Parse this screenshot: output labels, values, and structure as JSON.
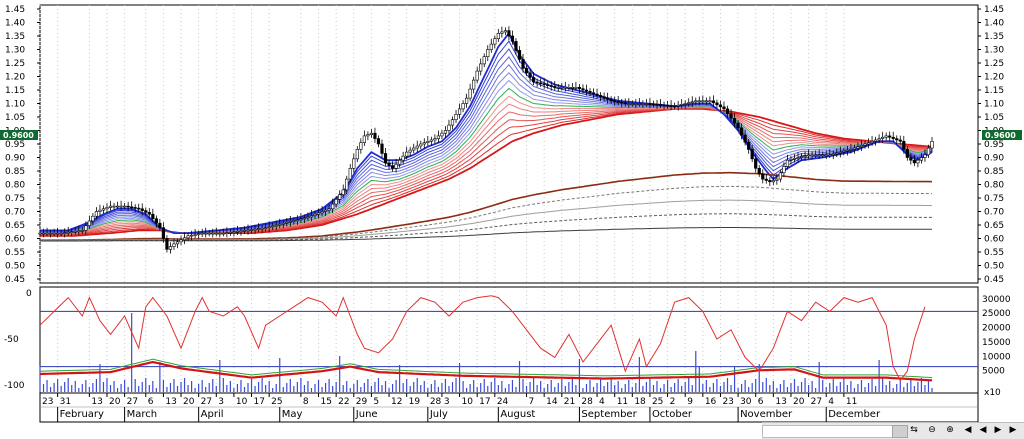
{
  "chart_data": {
    "type": "candlestick-with-moving-average-ribbon",
    "main_panel": {
      "y_axis_ticks": [
        "1.45",
        "1.40",
        "1.35",
        "1.30",
        "1.25",
        "1.20",
        "1.15",
        "1.10",
        "1.05",
        "1.00",
        "0.95",
        "0.90",
        "0.85",
        "0.80",
        "0.75",
        "0.70",
        "0.65",
        "0.60",
        "0.55",
        "0.50",
        "0.45"
      ],
      "ylim": [
        0.45,
        1.45
      ],
      "last_price_label": "0.9600",
      "last_price": 0.96,
      "price_path": [
        [
          0,
          0.62
        ],
        [
          6,
          0.62
        ],
        [
          12,
          0.63
        ],
        [
          16,
          0.7
        ],
        [
          20,
          0.72
        ],
        [
          24,
          0.72
        ],
        [
          28,
          0.71
        ],
        [
          31,
          0.69
        ],
        [
          34,
          0.64
        ],
        [
          36,
          0.56
        ],
        [
          38,
          0.58
        ],
        [
          42,
          0.61
        ],
        [
          46,
          0.62
        ],
        [
          52,
          0.62
        ],
        [
          58,
          0.63
        ],
        [
          64,
          0.64
        ],
        [
          70,
          0.66
        ],
        [
          76,
          0.68
        ],
        [
          82,
          0.71
        ],
        [
          86,
          0.78
        ],
        [
          88,
          0.86
        ],
        [
          90,
          0.93
        ],
        [
          92,
          0.98
        ],
        [
          94,
          0.99
        ],
        [
          96,
          0.95
        ],
        [
          98,
          0.88
        ],
        [
          100,
          0.86
        ],
        [
          102,
          0.89
        ],
        [
          104,
          0.92
        ],
        [
          108,
          0.95
        ],
        [
          112,
          0.97
        ],
        [
          115,
          1.0
        ],
        [
          118,
          1.06
        ],
        [
          121,
          1.12
        ],
        [
          124,
          1.22
        ],
        [
          127,
          1.3
        ],
        [
          130,
          1.36
        ],
        [
          132,
          1.37
        ],
        [
          134,
          1.33
        ],
        [
          137,
          1.23
        ],
        [
          140,
          1.18
        ],
        [
          146,
          1.16
        ],
        [
          152,
          1.16
        ],
        [
          158,
          1.13
        ],
        [
          162,
          1.11
        ],
        [
          166,
          1.1
        ],
        [
          172,
          1.1
        ],
        [
          180,
          1.09
        ],
        [
          186,
          1.11
        ],
        [
          190,
          1.11
        ],
        [
          194,
          1.08
        ],
        [
          198,
          1.01
        ],
        [
          201,
          0.93
        ],
        [
          203,
          0.86
        ],
        [
          205,
          0.82
        ],
        [
          207,
          0.81
        ],
        [
          209,
          0.82
        ],
        [
          212,
          0.89
        ],
        [
          215,
          0.9
        ],
        [
          218,
          0.91
        ],
        [
          224,
          0.91
        ],
        [
          230,
          0.93
        ],
        [
          236,
          0.96
        ],
        [
          240,
          0.98
        ],
        [
          244,
          0.96
        ],
        [
          246,
          0.9
        ],
        [
          248,
          0.88
        ],
        [
          251,
          0.91
        ],
        [
          253,
          0.96
        ]
      ],
      "short_term_ma": {
        "name": "",
        "color": "#1e2bd0",
        "values": [
          [
            0,
            0.63
          ],
          [
            8,
            0.63
          ],
          [
            14,
            0.66
          ],
          [
            18,
            0.69
          ],
          [
            22,
            0.71
          ],
          [
            26,
            0.71
          ],
          [
            30,
            0.69
          ],
          [
            34,
            0.64
          ],
          [
            38,
            0.62
          ],
          [
            42,
            0.62
          ],
          [
            50,
            0.63
          ],
          [
            58,
            0.64
          ],
          [
            66,
            0.66
          ],
          [
            74,
            0.68
          ],
          [
            80,
            0.71
          ],
          [
            86,
            0.77
          ],
          [
            90,
            0.86
          ],
          [
            94,
            0.92
          ],
          [
            98,
            0.89
          ],
          [
            102,
            0.89
          ],
          [
            106,
            0.91
          ],
          [
            110,
            0.94
          ],
          [
            114,
            0.96
          ],
          [
            118,
            1.01
          ],
          [
            122,
            1.09
          ],
          [
            126,
            1.2
          ],
          [
            130,
            1.31
          ],
          [
            133,
            1.36
          ],
          [
            136,
            1.28
          ],
          [
            140,
            1.21
          ],
          [
            146,
            1.17
          ],
          [
            152,
            1.15
          ],
          [
            158,
            1.13
          ],
          [
            164,
            1.11
          ],
          [
            172,
            1.1
          ],
          [
            180,
            1.09
          ],
          [
            186,
            1.1
          ],
          [
            190,
            1.1
          ],
          [
            194,
            1.06
          ],
          [
            198,
            1.0
          ],
          [
            202,
            0.92
          ],
          [
            206,
            0.85
          ],
          [
            208,
            0.82
          ],
          [
            212,
            0.86
          ],
          [
            216,
            0.89
          ],
          [
            222,
            0.9
          ],
          [
            230,
            0.92
          ],
          [
            238,
            0.96
          ],
          [
            242,
            0.96
          ],
          [
            246,
            0.91
          ],
          [
            249,
            0.89
          ],
          [
            253,
            0.92
          ]
        ]
      },
      "long_term_ma": {
        "name": "",
        "color": "#d81818",
        "values": [
          [
            0,
            0.61
          ],
          [
            10,
            0.61
          ],
          [
            20,
            0.62
          ],
          [
            28,
            0.63
          ],
          [
            34,
            0.63
          ],
          [
            40,
            0.62
          ],
          [
            50,
            0.62
          ],
          [
            60,
            0.62
          ],
          [
            70,
            0.63
          ],
          [
            80,
            0.65
          ],
          [
            90,
            0.69
          ],
          [
            100,
            0.74
          ],
          [
            110,
            0.79
          ],
          [
            116,
            0.82
          ],
          [
            122,
            0.86
          ],
          [
            128,
            0.91
          ],
          [
            134,
            0.96
          ],
          [
            140,
            0.99
          ],
          [
            148,
            1.02
          ],
          [
            156,
            1.04
          ],
          [
            164,
            1.06
          ],
          [
            172,
            1.07
          ],
          [
            180,
            1.08
          ],
          [
            188,
            1.08
          ],
          [
            196,
            1.07
          ],
          [
            204,
            1.05
          ],
          [
            212,
            1.02
          ],
          [
            220,
            0.99
          ],
          [
            228,
            0.97
          ],
          [
            236,
            0.96
          ],
          [
            244,
            0.95
          ],
          [
            253,
            0.94
          ]
        ]
      }
    },
    "indicator_panel": {
      "left_ticks": [
        "0",
        "-50",
        "-100"
      ],
      "left_range": [
        -100,
        0
      ],
      "right_ticks": [
        "30000",
        "25000",
        "20000",
        "15000",
        "10000",
        "5000"
      ],
      "right_range": [
        0,
        32000
      ],
      "right_axis_unit": "x10",
      "reference_lines": [
        -20,
        -80
      ],
      "oscillator": {
        "color": "#e23030",
        "values": [
          [
            0,
            -35
          ],
          [
            4,
            -20
          ],
          [
            8,
            -5
          ],
          [
            12,
            -25
          ],
          [
            14,
            -5
          ],
          [
            17,
            -30
          ],
          [
            20,
            -45
          ],
          [
            24,
            -25
          ],
          [
            28,
            -60
          ],
          [
            30,
            -15
          ],
          [
            32,
            -5
          ],
          [
            36,
            -25
          ],
          [
            40,
            -60
          ],
          [
            44,
            -20
          ],
          [
            46,
            -5
          ],
          [
            48,
            -20
          ],
          [
            52,
            -25
          ],
          [
            56,
            -15
          ],
          [
            58,
            -25
          ],
          [
            62,
            -60
          ],
          [
            64,
            -35
          ],
          [
            68,
            -25
          ],
          [
            72,
            -15
          ],
          [
            76,
            -5
          ],
          [
            80,
            -10
          ],
          [
            84,
            -25
          ],
          [
            86,
            -5
          ],
          [
            90,
            -45
          ],
          [
            92,
            -60
          ],
          [
            96,
            -65
          ],
          [
            100,
            -50
          ],
          [
            104,
            -20
          ],
          [
            108,
            -5
          ],
          [
            112,
            -10
          ],
          [
            116,
            -25
          ],
          [
            120,
            -10
          ],
          [
            124,
            -5
          ],
          [
            128,
            -3
          ],
          [
            130,
            -5
          ],
          [
            134,
            -20
          ],
          [
            138,
            -40
          ],
          [
            142,
            -60
          ],
          [
            146,
            -70
          ],
          [
            150,
            -45
          ],
          [
            154,
            -75
          ],
          [
            158,
            -55
          ],
          [
            162,
            -35
          ],
          [
            166,
            -85
          ],
          [
            170,
            -50
          ],
          [
            172,
            -80
          ],
          [
            176,
            -55
          ],
          [
            180,
            -10
          ],
          [
            184,
            -5
          ],
          [
            188,
            -20
          ],
          [
            192,
            -50
          ],
          [
            196,
            -40
          ],
          [
            200,
            -70
          ],
          [
            204,
            -85
          ],
          [
            208,
            -60
          ],
          [
            212,
            -20
          ],
          [
            216,
            -30
          ],
          [
            220,
            -10
          ],
          [
            224,
            -20
          ],
          [
            228,
            -5
          ],
          [
            232,
            -10
          ],
          [
            236,
            -5
          ],
          [
            240,
            -35
          ],
          [
            242,
            -80
          ],
          [
            244,
            -95
          ],
          [
            246,
            -85
          ],
          [
            248,
            -50
          ],
          [
            251,
            -15
          ]
        ]
      },
      "volume_baseline_avg": [
        [
          0,
          -88
        ],
        [
          20,
          -86
        ],
        [
          32,
          -75
        ],
        [
          40,
          -82
        ],
        [
          60,
          -92
        ],
        [
          80,
          -85
        ],
        [
          88,
          -80
        ],
        [
          96,
          -86
        ],
        [
          120,
          -90
        ],
        [
          160,
          -93
        ],
        [
          190,
          -91
        ],
        [
          204,
          -84
        ],
        [
          214,
          -83
        ],
        [
          222,
          -92
        ],
        [
          240,
          -92
        ],
        [
          253,
          -95
        ]
      ]
    },
    "x_axis": {
      "day_ticks": [
        {
          "label": "23",
          "x": 0
        },
        {
          "label": "31",
          "x": 5
        },
        {
          "label": "13",
          "x": 14
        },
        {
          "label": "20",
          "x": 19
        },
        {
          "label": "27",
          "x": 24
        },
        {
          "label": "6",
          "x": 30
        },
        {
          "label": "13",
          "x": 35
        },
        {
          "label": "20",
          "x": 40
        },
        {
          "label": "27",
          "x": 45
        },
        {
          "label": "3",
          "x": 50
        },
        {
          "label": "10",
          "x": 55
        },
        {
          "label": "17",
          "x": 60
        },
        {
          "label": "25",
          "x": 65
        },
        {
          "label": "8",
          "x": 74
        },
        {
          "label": "15",
          "x": 79
        },
        {
          "label": "22",
          "x": 84
        },
        {
          "label": "29",
          "x": 89
        },
        {
          "label": "5",
          "x": 94
        },
        {
          "label": "12",
          "x": 99
        },
        {
          "label": "19",
          "x": 104
        },
        {
          "label": "28",
          "x": 110
        },
        {
          "label": "3",
          "x": 114
        },
        {
          "label": "10",
          "x": 119
        },
        {
          "label": "17",
          "x": 124
        },
        {
          "label": "24",
          "x": 129
        },
        {
          "label": "7",
          "x": 138
        },
        {
          "label": "14",
          "x": 143
        },
        {
          "label": "21",
          "x": 148
        },
        {
          "label": "28",
          "x": 153
        },
        {
          "label": "4",
          "x": 158
        },
        {
          "label": "11",
          "x": 163
        },
        {
          "label": "18",
          "x": 168
        },
        {
          "label": "25",
          "x": 173
        },
        {
          "label": "2",
          "x": 178
        },
        {
          "label": "9",
          "x": 183
        },
        {
          "label": "16",
          "x": 188
        },
        {
          "label": "23",
          "x": 193
        },
        {
          "label": "30",
          "x": 198
        },
        {
          "label": "6",
          "x": 203
        },
        {
          "label": "13",
          "x": 208
        },
        {
          "label": "20",
          "x": 213
        },
        {
          "label": "27",
          "x": 218
        },
        {
          "label": "4",
          "x": 223
        },
        {
          "label": "11",
          "x": 228
        }
      ],
      "months": [
        {
          "label": "February",
          "x": 5
        },
        {
          "label": "March",
          "x": 24
        },
        {
          "label": "April",
          "x": 45
        },
        {
          "label": "May",
          "x": 68
        },
        {
          "label": "June",
          "x": 89
        },
        {
          "label": "July",
          "x": 110
        },
        {
          "label": "August",
          "x": 130
        },
        {
          "label": "September",
          "x": 153
        },
        {
          "label": "October",
          "x": 173
        },
        {
          "label": "November",
          "x": 198
        },
        {
          "label": "December",
          "x": 223
        }
      ]
    }
  },
  "scrollbar": {
    "buttons": [
      "⇆",
      "⊖",
      "⊕",
      "◀",
      "◀",
      "▶",
      "▶"
    ]
  }
}
